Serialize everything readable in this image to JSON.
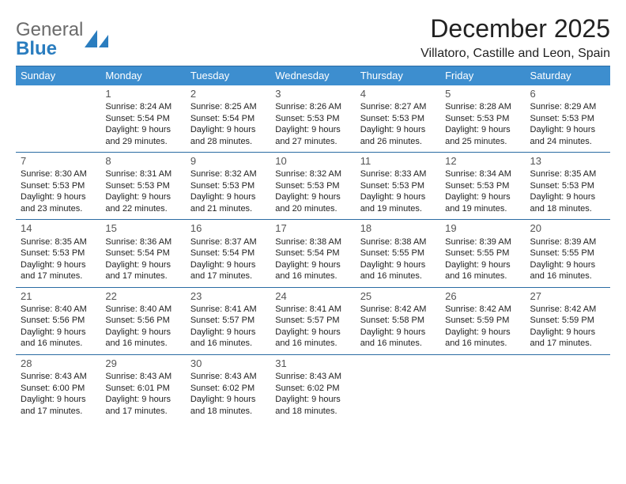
{
  "logo": {
    "word1": "General",
    "word2": "Blue"
  },
  "title": "December 2025",
  "subtitle": "Villatoro, Castille and Leon, Spain",
  "colors": {
    "header_bg": "#3d8ecf",
    "header_text": "#ffffff",
    "rule": "#2b6ca3",
    "daynum": "#555555",
    "body_text": "#222222",
    "logo_gray": "#6b6b6b",
    "logo_blue": "#2a7dbf"
  },
  "weekdays": [
    "Sunday",
    "Monday",
    "Tuesday",
    "Wednesday",
    "Thursday",
    "Friday",
    "Saturday"
  ],
  "weeks": [
    [
      null,
      {
        "n": "1",
        "sr": "Sunrise: 8:24 AM",
        "ss": "Sunset: 5:54 PM",
        "d1": "Daylight: 9 hours",
        "d2": "and 29 minutes."
      },
      {
        "n": "2",
        "sr": "Sunrise: 8:25 AM",
        "ss": "Sunset: 5:54 PM",
        "d1": "Daylight: 9 hours",
        "d2": "and 28 minutes."
      },
      {
        "n": "3",
        "sr": "Sunrise: 8:26 AM",
        "ss": "Sunset: 5:53 PM",
        "d1": "Daylight: 9 hours",
        "d2": "and 27 minutes."
      },
      {
        "n": "4",
        "sr": "Sunrise: 8:27 AM",
        "ss": "Sunset: 5:53 PM",
        "d1": "Daylight: 9 hours",
        "d2": "and 26 minutes."
      },
      {
        "n": "5",
        "sr": "Sunrise: 8:28 AM",
        "ss": "Sunset: 5:53 PM",
        "d1": "Daylight: 9 hours",
        "d2": "and 25 minutes."
      },
      {
        "n": "6",
        "sr": "Sunrise: 8:29 AM",
        "ss": "Sunset: 5:53 PM",
        "d1": "Daylight: 9 hours",
        "d2": "and 24 minutes."
      }
    ],
    [
      {
        "n": "7",
        "sr": "Sunrise: 8:30 AM",
        "ss": "Sunset: 5:53 PM",
        "d1": "Daylight: 9 hours",
        "d2": "and 23 minutes."
      },
      {
        "n": "8",
        "sr": "Sunrise: 8:31 AM",
        "ss": "Sunset: 5:53 PM",
        "d1": "Daylight: 9 hours",
        "d2": "and 22 minutes."
      },
      {
        "n": "9",
        "sr": "Sunrise: 8:32 AM",
        "ss": "Sunset: 5:53 PM",
        "d1": "Daylight: 9 hours",
        "d2": "and 21 minutes."
      },
      {
        "n": "10",
        "sr": "Sunrise: 8:32 AM",
        "ss": "Sunset: 5:53 PM",
        "d1": "Daylight: 9 hours",
        "d2": "and 20 minutes."
      },
      {
        "n": "11",
        "sr": "Sunrise: 8:33 AM",
        "ss": "Sunset: 5:53 PM",
        "d1": "Daylight: 9 hours",
        "d2": "and 19 minutes."
      },
      {
        "n": "12",
        "sr": "Sunrise: 8:34 AM",
        "ss": "Sunset: 5:53 PM",
        "d1": "Daylight: 9 hours",
        "d2": "and 19 minutes."
      },
      {
        "n": "13",
        "sr": "Sunrise: 8:35 AM",
        "ss": "Sunset: 5:53 PM",
        "d1": "Daylight: 9 hours",
        "d2": "and 18 minutes."
      }
    ],
    [
      {
        "n": "14",
        "sr": "Sunrise: 8:35 AM",
        "ss": "Sunset: 5:53 PM",
        "d1": "Daylight: 9 hours",
        "d2": "and 17 minutes."
      },
      {
        "n": "15",
        "sr": "Sunrise: 8:36 AM",
        "ss": "Sunset: 5:54 PM",
        "d1": "Daylight: 9 hours",
        "d2": "and 17 minutes."
      },
      {
        "n": "16",
        "sr": "Sunrise: 8:37 AM",
        "ss": "Sunset: 5:54 PM",
        "d1": "Daylight: 9 hours",
        "d2": "and 17 minutes."
      },
      {
        "n": "17",
        "sr": "Sunrise: 8:38 AM",
        "ss": "Sunset: 5:54 PM",
        "d1": "Daylight: 9 hours",
        "d2": "and 16 minutes."
      },
      {
        "n": "18",
        "sr": "Sunrise: 8:38 AM",
        "ss": "Sunset: 5:55 PM",
        "d1": "Daylight: 9 hours",
        "d2": "and 16 minutes."
      },
      {
        "n": "19",
        "sr": "Sunrise: 8:39 AM",
        "ss": "Sunset: 5:55 PM",
        "d1": "Daylight: 9 hours",
        "d2": "and 16 minutes."
      },
      {
        "n": "20",
        "sr": "Sunrise: 8:39 AM",
        "ss": "Sunset: 5:55 PM",
        "d1": "Daylight: 9 hours",
        "d2": "and 16 minutes."
      }
    ],
    [
      {
        "n": "21",
        "sr": "Sunrise: 8:40 AM",
        "ss": "Sunset: 5:56 PM",
        "d1": "Daylight: 9 hours",
        "d2": "and 16 minutes."
      },
      {
        "n": "22",
        "sr": "Sunrise: 8:40 AM",
        "ss": "Sunset: 5:56 PM",
        "d1": "Daylight: 9 hours",
        "d2": "and 16 minutes."
      },
      {
        "n": "23",
        "sr": "Sunrise: 8:41 AM",
        "ss": "Sunset: 5:57 PM",
        "d1": "Daylight: 9 hours",
        "d2": "and 16 minutes."
      },
      {
        "n": "24",
        "sr": "Sunrise: 8:41 AM",
        "ss": "Sunset: 5:57 PM",
        "d1": "Daylight: 9 hours",
        "d2": "and 16 minutes."
      },
      {
        "n": "25",
        "sr": "Sunrise: 8:42 AM",
        "ss": "Sunset: 5:58 PM",
        "d1": "Daylight: 9 hours",
        "d2": "and 16 minutes."
      },
      {
        "n": "26",
        "sr": "Sunrise: 8:42 AM",
        "ss": "Sunset: 5:59 PM",
        "d1": "Daylight: 9 hours",
        "d2": "and 16 minutes."
      },
      {
        "n": "27",
        "sr": "Sunrise: 8:42 AM",
        "ss": "Sunset: 5:59 PM",
        "d1": "Daylight: 9 hours",
        "d2": "and 17 minutes."
      }
    ],
    [
      {
        "n": "28",
        "sr": "Sunrise: 8:43 AM",
        "ss": "Sunset: 6:00 PM",
        "d1": "Daylight: 9 hours",
        "d2": "and 17 minutes."
      },
      {
        "n": "29",
        "sr": "Sunrise: 8:43 AM",
        "ss": "Sunset: 6:01 PM",
        "d1": "Daylight: 9 hours",
        "d2": "and 17 minutes."
      },
      {
        "n": "30",
        "sr": "Sunrise: 8:43 AM",
        "ss": "Sunset: 6:02 PM",
        "d1": "Daylight: 9 hours",
        "d2": "and 18 minutes."
      },
      {
        "n": "31",
        "sr": "Sunrise: 8:43 AM",
        "ss": "Sunset: 6:02 PM",
        "d1": "Daylight: 9 hours",
        "d2": "and 18 minutes."
      },
      null,
      null,
      null
    ]
  ]
}
